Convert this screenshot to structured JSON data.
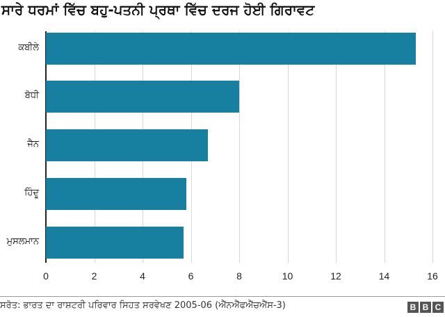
{
  "title": "ਸਾਰੇ ਧਰਮਾਂ ਵਿੱਚ ਬਹੁ-ਪਤਨੀ ਪ੍ਰਥਾ ਵਿੱਚ ਦਰਜ ਹੋਈ ਗਿਰਾਵਟ",
  "colors": {
    "bar": "#1780a1",
    "grid": "#d6d6d6",
    "axis": "#222222"
  },
  "source": "ਸਰੋਤ: ਭਾਰਤ ਦਾ ਰਾਸ਼ਟਰੀ ਪਰਿਵਾਰ ਸਿਹਤ ਸਰਵੇਖਣ 2005-06 (ਐੱਨਐੱਫਐੱਚਐੱਸ-3)",
  "logo": [
    "B",
    "B",
    "C"
  ],
  "chart_data": {
    "type": "bar",
    "orientation": "horizontal",
    "title": "ਸਾਰੇ ਧਰਮਾਂ ਵਿੱਚ ਬਹੁ-ਪਤਨੀ ਪ੍ਰਥਾ ਵਿੱਚ ਦਰਜ ਹੋਈ ਗਿਰਾਵਟ",
    "categories": [
      "ਕਬੀਲੇ",
      "ਬੋਧੀ",
      "ਜੈਨ",
      "ਹਿੰਦੂ",
      "ਮੁਸਲਮਾਨ"
    ],
    "values": [
      15.3,
      8.0,
      6.7,
      5.8,
      5.7
    ],
    "xlabel": "",
    "ylabel": "",
    "xlim": [
      0,
      16
    ],
    "xticks": [
      "0",
      "2",
      "4",
      "6",
      "8",
      "10",
      "12",
      "14",
      "16"
    ],
    "grid": true,
    "legend": null
  }
}
